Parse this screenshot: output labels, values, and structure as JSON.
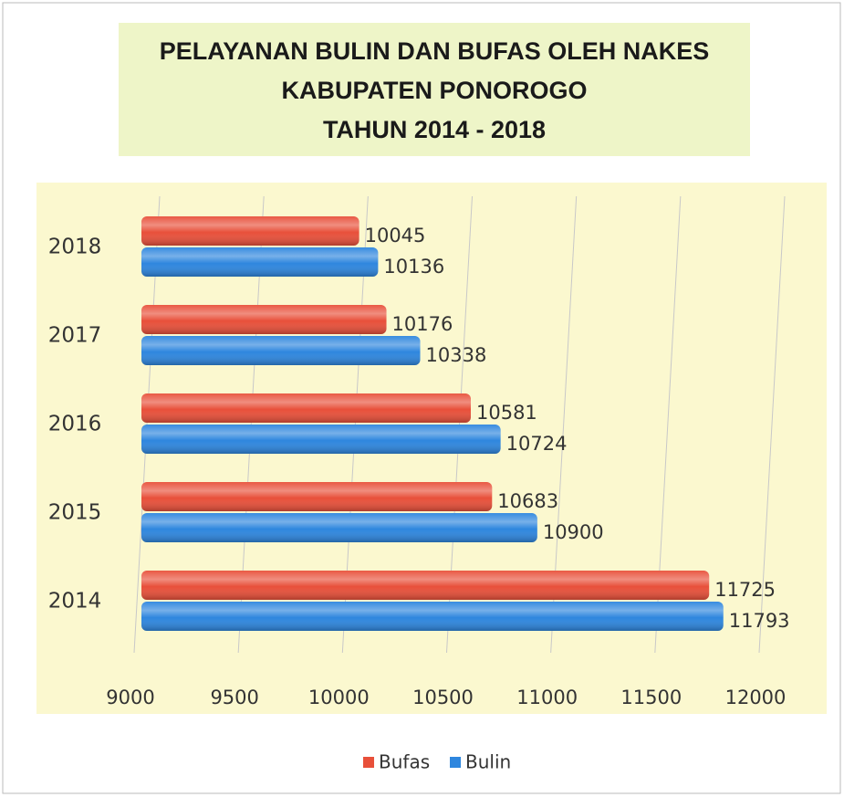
{
  "chart_data": {
    "type": "hbar",
    "title": [
      "PELAYANAN BULIN DAN BUFAS OLEH NAKES",
      "KABUPATEN PONOROGO",
      "TAHUN 2014 - 2018"
    ],
    "categories": [
      "2014",
      "2015",
      "2016",
      "2017",
      "2018"
    ],
    "series": [
      {
        "name": "Bufas",
        "color": "#e8503a",
        "values": [
          11725,
          10683,
          10581,
          10176,
          10045
        ]
      },
      {
        "name": "Bulin",
        "color": "#2e86de",
        "values": [
          11793,
          10900,
          10724,
          10338,
          10136
        ]
      }
    ],
    "xlim": [
      9000,
      12000
    ],
    "xticks": [
      9000,
      9500,
      10000,
      10500,
      11000,
      11500,
      12000
    ],
    "grid": true,
    "legend": "bottom"
  }
}
